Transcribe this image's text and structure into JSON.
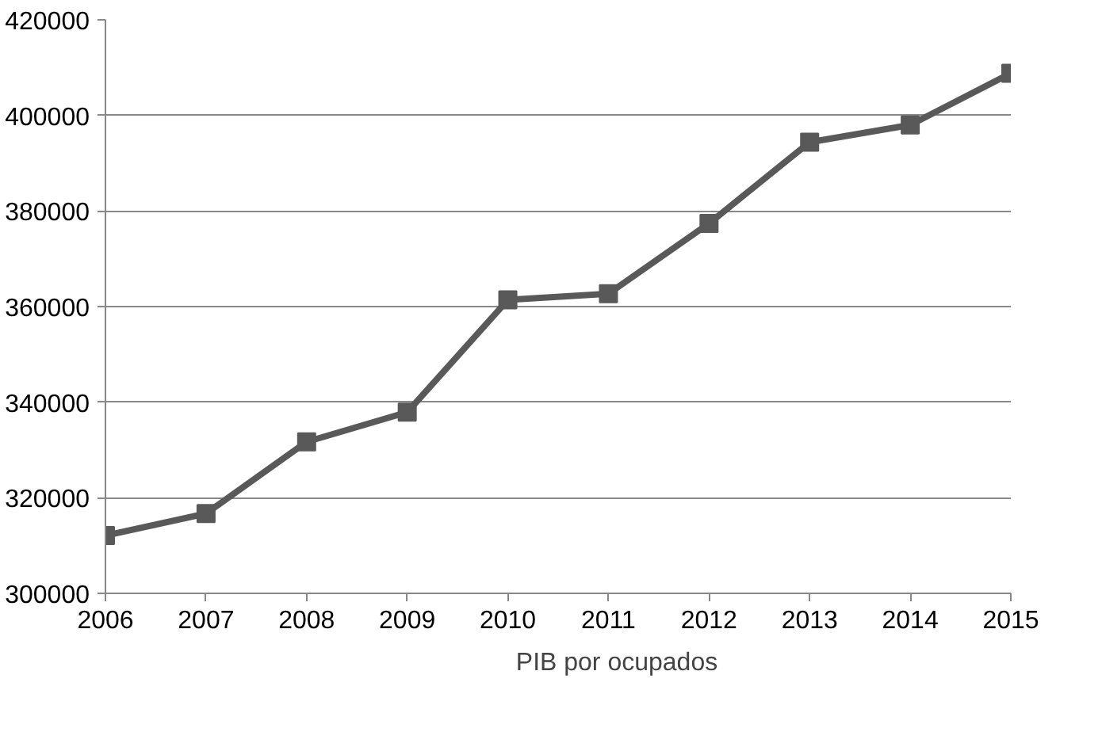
{
  "chart_data": {
    "type": "line",
    "categories": [
      "2006",
      "2007",
      "2008",
      "2009",
      "2010",
      "2011",
      "2012",
      "2013",
      "2014",
      "2015"
    ],
    "series": [
      {
        "name": "PIB por ocupados",
        "color": "#595959",
        "values": [
          312100,
          316700,
          331700,
          337900,
          361400,
          362700,
          377400,
          394400,
          398000,
          408800
        ]
      }
    ],
    "ylim": [
      300000,
      420000
    ],
    "yticks": [
      300000,
      320000,
      340000,
      360000,
      380000,
      400000,
      420000
    ],
    "grid": "y",
    "legend": "bottom",
    "marker": "square",
    "line_style": "solid"
  }
}
